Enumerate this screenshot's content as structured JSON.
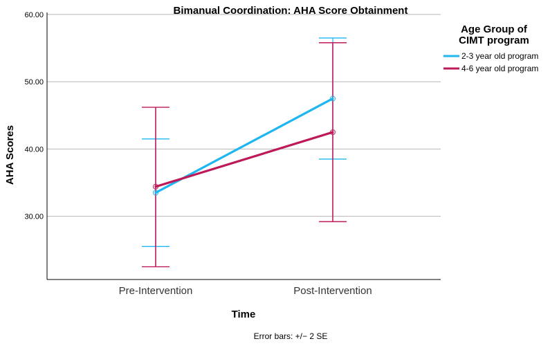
{
  "chart_data": {
    "type": "line",
    "title": "Bimanual Coordination: AHA Score Obtainment",
    "xlabel": "Time",
    "ylabel": "AHA Scores",
    "categories": [
      "Pre-Intervention",
      "Post-Intervention"
    ],
    "ylim": [
      20.6,
      60.3
    ],
    "yticks": [
      30,
      40,
      50,
      60
    ],
    "ytick_labels": [
      "30.00",
      "40.00",
      "50.00",
      "60.00"
    ],
    "grid": true,
    "legend": {
      "title_lines": [
        "Age Group of",
        "CIMT program"
      ],
      "position": "right"
    },
    "series": [
      {
        "name": "2-3 year old program",
        "color": "#1EB6F0",
        "values": [
          33.5,
          47.5
        ],
        "error_low": [
          25.5,
          38.5
        ],
        "error_high": [
          41.5,
          56.5
        ]
      },
      {
        "name": "4-6 year old program",
        "color": "#BE1A5A",
        "values": [
          34.4,
          42.5
        ],
        "error_low": [
          22.5,
          29.2
        ],
        "error_high": [
          46.2,
          55.8
        ]
      }
    ],
    "note": "Error bars: +/− 2 SE"
  }
}
